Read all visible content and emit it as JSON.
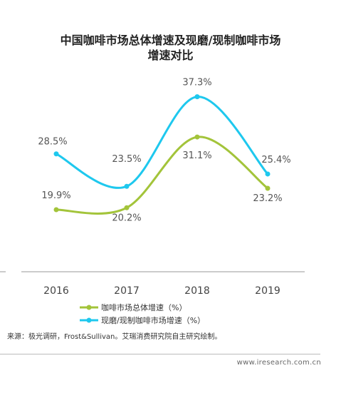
{
  "chart_data": {
    "type": "line",
    "title": [
      "中国咖啡市场总体增速及现磨/现制咖啡市场",
      "增速对比"
    ],
    "categories": [
      "2016",
      "2017",
      "2018",
      "2019"
    ],
    "series": [
      {
        "name": "咖啡市场总体增速（%）",
        "color": "#a3c43a",
        "values": [
          19.9,
          20.2,
          31.1,
          23.2
        ],
        "labels": [
          "19.9%",
          "20.2%",
          "31.1%",
          "23.2%"
        ]
      },
      {
        "name": "现磨/现制咖啡市场增速（%）",
        "color": "#1ec8ee",
        "values": [
          28.5,
          23.5,
          37.3,
          25.4
        ],
        "labels": [
          "28.5%",
          "23.5%",
          "37.3%",
          "25.4%"
        ]
      }
    ],
    "legend_position": "bottom",
    "grid": false
  },
  "source": "来源：极光调研，Frost&Sullivan。艾瑞消费研究院自主研究绘制。",
  "footer": "www.iresearch.com.cn"
}
